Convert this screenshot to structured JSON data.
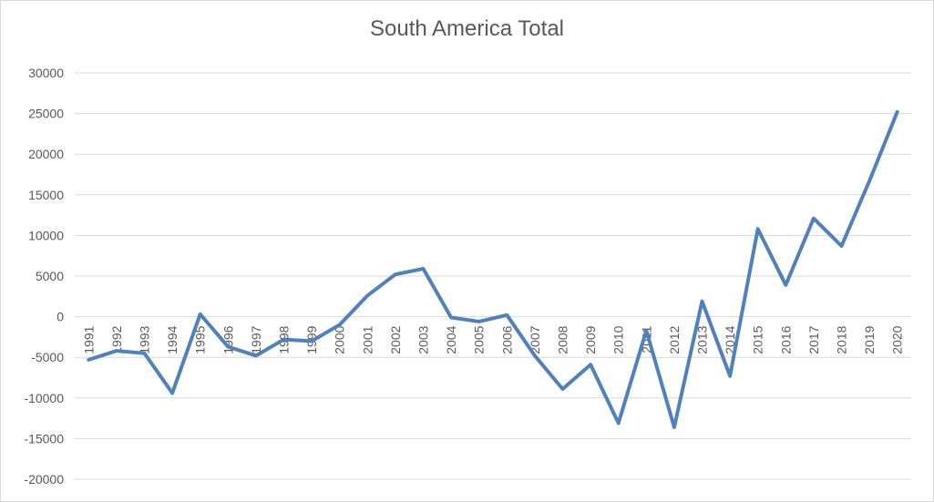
{
  "chart_data": {
    "type": "line",
    "title": "South America Total",
    "xlabel": "",
    "ylabel": "",
    "ylim": [
      -20000,
      30000
    ],
    "yticks": [
      30000,
      25000,
      20000,
      15000,
      10000,
      5000,
      0,
      -5000,
      -10000,
      -15000,
      -20000
    ],
    "grid": true,
    "legend": "none",
    "line_color": "#4f81bd",
    "categories": [
      "1991",
      "1992",
      "1993",
      "1994",
      "1995",
      "1996",
      "1997",
      "1998",
      "1999",
      "2000",
      "2001",
      "2002",
      "2003",
      "2004",
      "2005",
      "2006",
      "2007",
      "2008",
      "2009",
      "2010",
      "2011",
      "2012",
      "2013",
      "2014",
      "2015",
      "2016",
      "2017",
      "2018",
      "2019",
      "2020"
    ],
    "series": [
      {
        "values": [
          -5300,
          -4200,
          -4500,
          -9400,
          300,
          -3700,
          -4800,
          -2800,
          -3000,
          -1000,
          2600,
          5200,
          5900,
          -100,
          -600,
          200,
          -4800,
          -8900,
          -5900,
          -13100,
          -1700,
          -13600,
          1900,
          -7300,
          10800,
          3900,
          12100,
          8700,
          16700,
          25200
        ]
      }
    ]
  }
}
